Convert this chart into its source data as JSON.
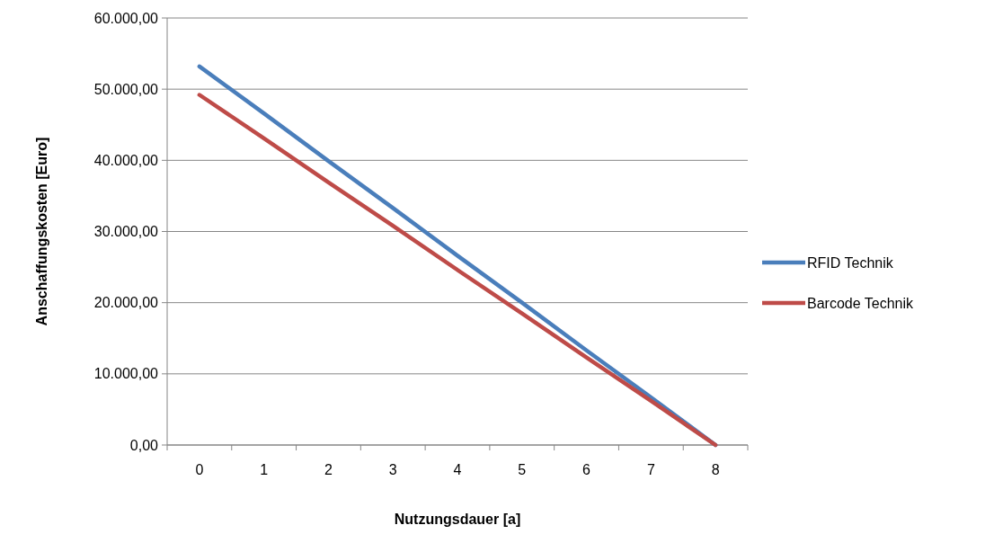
{
  "chart_data": {
    "type": "line",
    "xlabel": "Nutzungsdauer [a]",
    "ylabel": "Anschaffungskosten [Euro]",
    "categories": [
      "0",
      "1",
      "2",
      "3",
      "4",
      "5",
      "6",
      "7",
      "8"
    ],
    "series": [
      {
        "name": "RFID Technik",
        "color": "#4a7ebb",
        "values": [
          53200,
          46600,
          39900,
          33300,
          26600,
          20000,
          13300,
          6700,
          0
        ]
      },
      {
        "name": "Barcode Technik",
        "color": "#be4b48",
        "values": [
          49200,
          43100,
          36900,
          30800,
          24600,
          18500,
          12300,
          6200,
          0
        ]
      }
    ],
    "ylim": [
      0,
      60000
    ],
    "yticks": [
      {
        "value": 0,
        "label": "0,00"
      },
      {
        "value": 10000,
        "label": "10.000,00"
      },
      {
        "value": 20000,
        "label": "20.000,00"
      },
      {
        "value": 30000,
        "label": "30.000,00"
      },
      {
        "value": 40000,
        "label": "40.000,00"
      },
      {
        "value": 50000,
        "label": "50.000,00"
      },
      {
        "value": 60000,
        "label": "60.000,00"
      }
    ],
    "grid": "y",
    "legend": "right",
    "marker": "none",
    "line_style": "solid"
  }
}
